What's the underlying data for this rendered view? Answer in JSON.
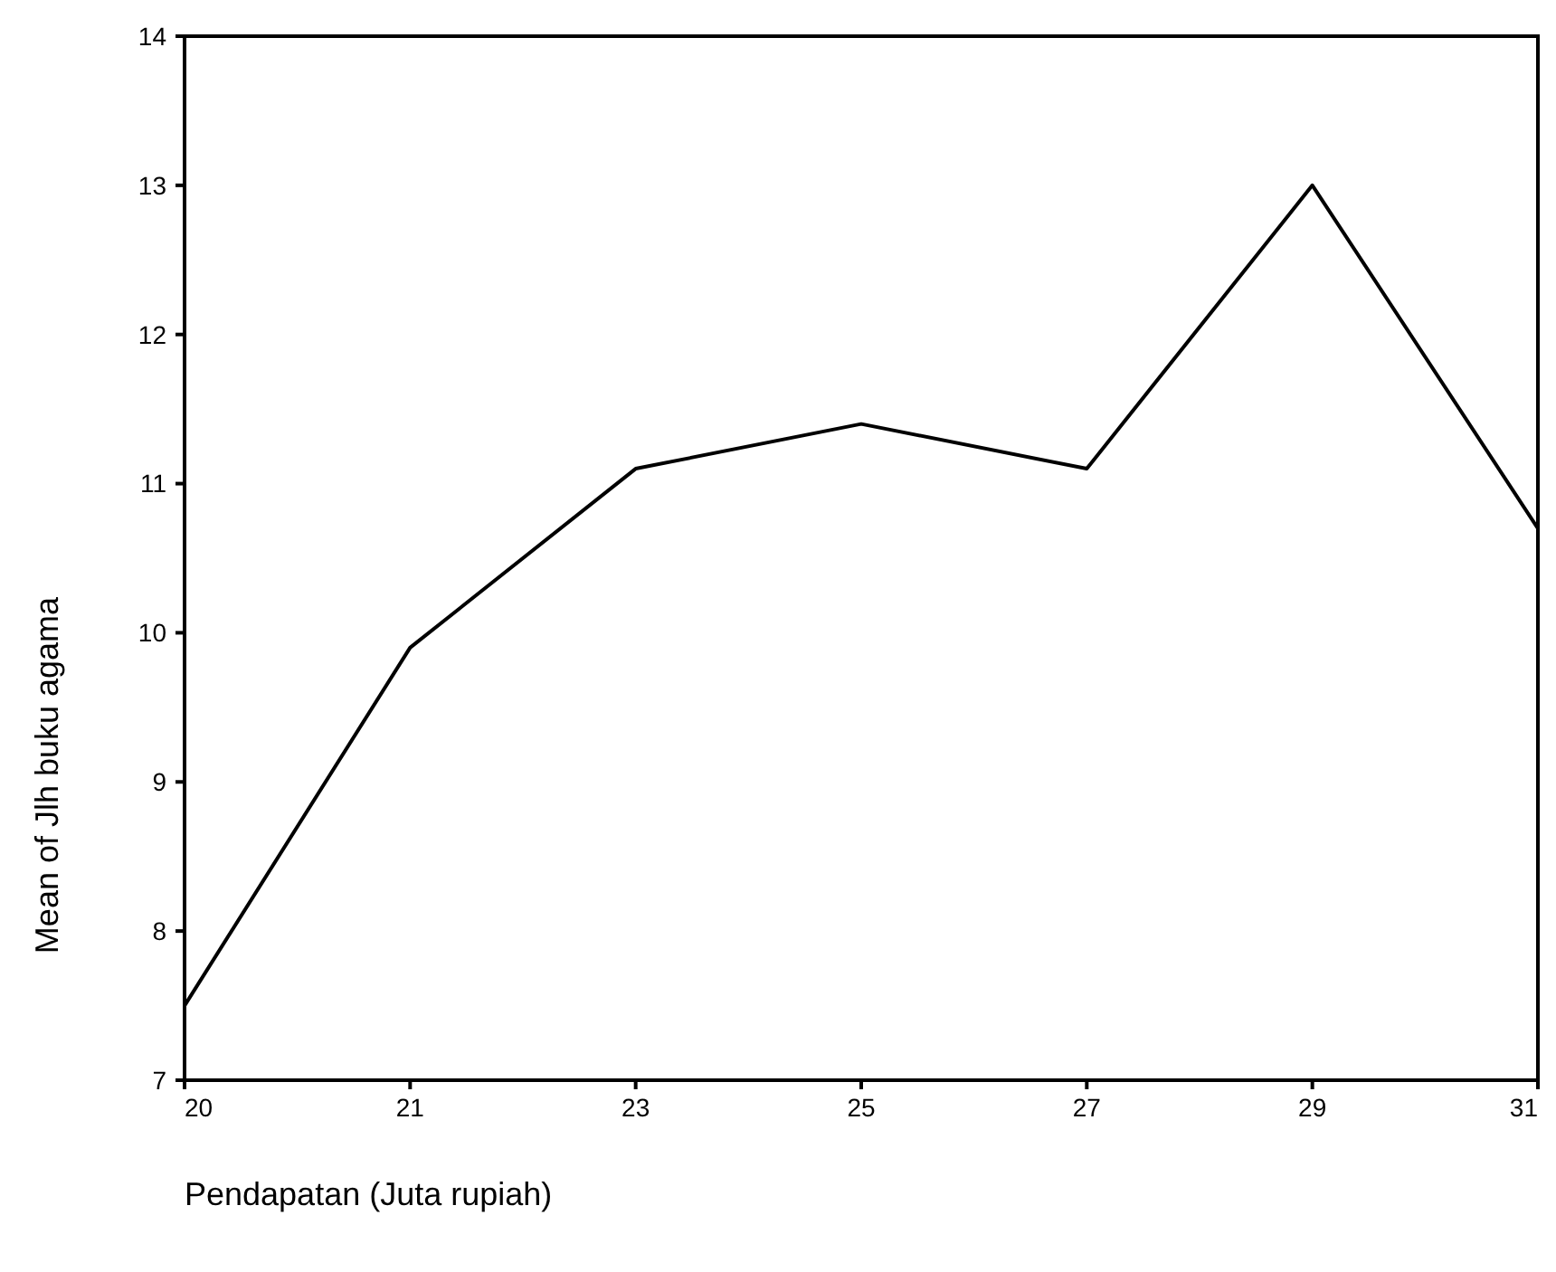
{
  "chart_data": {
    "type": "line",
    "xlabel": "Pendapatan (Juta rupiah)",
    "ylabel": "Mean of Jlh buku agama",
    "categories": [
      "20",
      "21",
      "23",
      "25",
      "27",
      "29",
      "31"
    ],
    "values": [
      7.5,
      9.9,
      11.1,
      11.4,
      11.1,
      13.0,
      10.7
    ],
    "color": "#000000",
    "ylim": [
      7,
      14
    ],
    "yticks": [
      7,
      8,
      9,
      10,
      11,
      12,
      13,
      14
    ],
    "grid": false,
    "marker": "none",
    "line_style": "solid"
  }
}
